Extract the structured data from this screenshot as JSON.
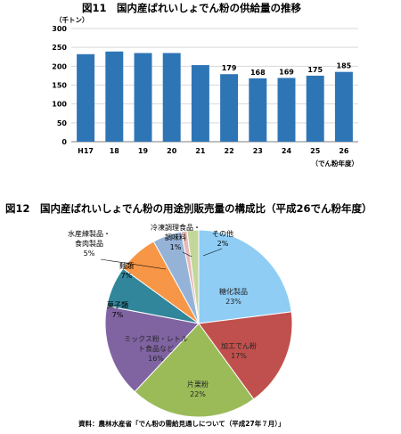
{
  "figure11": {
    "title": "図11　国内産ばれいしょでん粉の供給量の推移"
  },
  "figure12": {
    "title": "図12　国内産ばれいしょでん粉の用途別販売量の構成比（平成26でん粉年度）"
  },
  "source_note": "資料：農林水産省「でん粉の需給見通しについて（平成27年７月）」",
  "chart_data": [
    {
      "type": "bar",
      "title": "図11　国内産ばれいしょでん粉の供給量の推移",
      "unit_label": "（千トン）",
      "xlabel": "（でん粉年度）",
      "ylabel": "",
      "categories": [
        "H17",
        "18",
        "19",
        "20",
        "21",
        "22",
        "23",
        "24",
        "25",
        "26"
      ],
      "values": [
        232,
        239,
        235,
        235,
        203,
        179,
        168,
        169,
        175,
        185
      ],
      "data_labels": [
        "",
        "",
        "",
        "",
        "",
        "179",
        "168",
        "169",
        "175",
        "185"
      ],
      "ylim": [
        0,
        300
      ],
      "yticks": [
        0,
        50,
        100,
        150,
        200,
        250,
        300
      ],
      "grid": true,
      "color": "#2e75b6"
    },
    {
      "type": "pie",
      "title": "図12　国内産ばれいしょでん粉の用途別販売量の構成比（平成26でん粉年度）",
      "slices": [
        {
          "label": "糖化製品",
          "value": 23,
          "value_label": "23%",
          "color": "#8fcdf5"
        },
        {
          "label": "加工でん粉",
          "value": 17,
          "value_label": "17%",
          "color": "#c0504d"
        },
        {
          "label": "片栗粉",
          "value": 22,
          "value_label": "22%",
          "color": "#9bbb59"
        },
        {
          "label": "ミックス粉・レトルト食品など",
          "value": 16,
          "value_label": "16%",
          "color": "#8064a2"
        },
        {
          "label": "菓子類",
          "value": 7,
          "value_label": "7%",
          "color": "#31869b"
        },
        {
          "label": "麺類",
          "value": 7,
          "value_label": "7%",
          "color": "#f79646"
        },
        {
          "label": "水産練製品・食肉製品",
          "value": 5,
          "value_label": "5%",
          "color": "#95b3d7"
        },
        {
          "label": "冷凍調理食品・調味料",
          "value": 1,
          "value_label": "1%",
          "color": "#e6b9b8"
        },
        {
          "label": "その他",
          "value": 2,
          "value_label": "2%",
          "color": "#c4d79b"
        }
      ]
    }
  ]
}
